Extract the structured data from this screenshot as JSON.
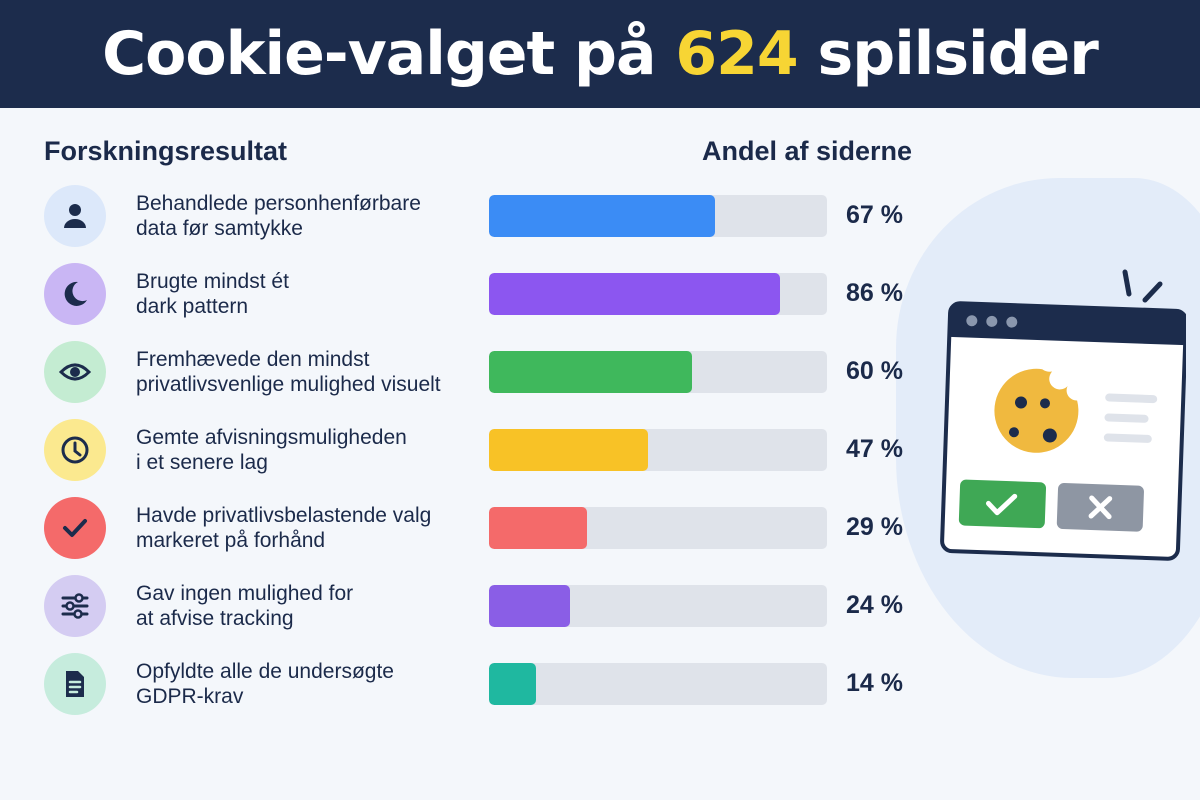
{
  "title": {
    "before": "Cookie-valget på ",
    "highlight": "624",
    "after": " spilsider"
  },
  "columns": {
    "left": "Forskningsresultat",
    "right": "Andel af siderne"
  },
  "chart_data": {
    "type": "bar",
    "orientation": "horizontal",
    "xlim": [
      0,
      100
    ],
    "unit": "%",
    "categories": [
      "Behandlede personhenførbare data før samtykke",
      "Brugte mindst ét dark pattern",
      "Fremhævede den mindst privatlivsvenlige mulighed visuelt",
      "Gemte afvisningsmuligheden i et senere lag",
      "Havde privatlivsbelastende valg markeret på forhånd",
      "Gav ingen mulighed for at afvise tracking",
      "Opfyldte alle de undersøgte GDPR-krav"
    ],
    "values": [
      67,
      86,
      60,
      47,
      29,
      24,
      14
    ]
  },
  "rows": [
    {
      "line1": "Behandlede personhenførbare",
      "line2": "data før samtykke",
      "pct_text": "67 %",
      "value": 67,
      "color": "#3b8cf5",
      "icon_bg": "#dce8fa",
      "icon": "person-icon"
    },
    {
      "line1": "Brugte mindst ét",
      "line2": "dark pattern",
      "pct_text": "86 %",
      "value": 86,
      "color": "#8c56f0",
      "icon_bg": "#c9b6f4",
      "icon": "moon-icon"
    },
    {
      "line1": "Fremhævede den mindst",
      "line2": "privatlivsvenlige mulighed visuelt",
      "pct_text": "60 %",
      "value": 60,
      "color": "#3fb85c",
      "icon_bg": "#c4ecd2",
      "icon": "eye-icon"
    },
    {
      "line1": "Gemte afvisningsmuligheden",
      "line2": "i et senere lag",
      "pct_text": "47 %",
      "value": 47,
      "color": "#f8c226",
      "icon_bg": "#fbe98f",
      "icon": "clock-icon"
    },
    {
      "line1": "Havde privatlivsbelastende valg",
      "line2": "markeret på forhånd",
      "pct_text": "29 %",
      "value": 29,
      "color": "#f46a6a",
      "icon_bg": "#f46a6a",
      "icon": "check-icon"
    },
    {
      "line1": "Gav ingen mulighed for",
      "line2": "at afvise tracking",
      "pct_text": "24 %",
      "value": 24,
      "color": "#8a5ee6",
      "icon_bg": "#d4ccf2",
      "icon": "sliders-icon"
    },
    {
      "line1": "Opfyldte alle de undersøgte",
      "line2": "GDPR-krav",
      "pct_text": "14 %",
      "value": 14,
      "color": "#1fb8a0",
      "icon_bg": "#c6ecdd",
      "icon": "document-icon"
    }
  ],
  "colors": {
    "header_bg": "#1c2c4c",
    "highlight": "#f7d534",
    "track": "#dfe3ea"
  },
  "illustration": {
    "icon": "cookie-consent-window-icon",
    "accept_icon": "check-icon",
    "reject_icon": "close-icon"
  }
}
